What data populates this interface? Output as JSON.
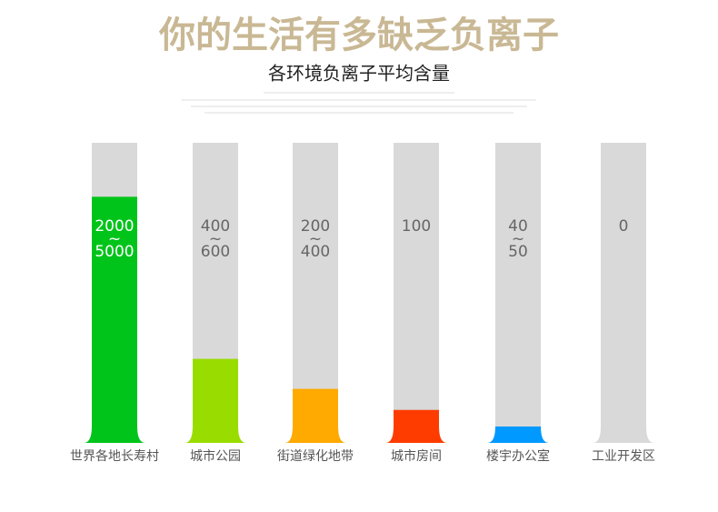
{
  "header": {
    "title": "你的生活有多缺乏负离子",
    "subtitle": "各环境负离子平均含量"
  },
  "tubes": [
    {
      "label": "世界各地长寿村",
      "range": [
        "2000",
        "~",
        "5000"
      ],
      "level": 82,
      "color": "#00c41a"
    },
    {
      "label": "城市公园",
      "range": [
        "400",
        "~",
        "600"
      ],
      "level": 28,
      "color": "#99dd00"
    },
    {
      "label": "街道绿化地带",
      "range": [
        "200",
        "~",
        "400"
      ],
      "level": 18,
      "color": "#ffaa00"
    },
    {
      "label": "城市房间",
      "range": [
        "100"
      ],
      "level": 11,
      "color": "#ff3c00"
    },
    {
      "label": "楼宇办公室",
      "range": [
        "40",
        "~",
        "50"
      ],
      "level": 5,
      "color": "#0099ff"
    },
    {
      "label": "工业开发区",
      "range": [
        "0"
      ],
      "level": 0,
      "color": "#d9d9d9"
    }
  ]
}
